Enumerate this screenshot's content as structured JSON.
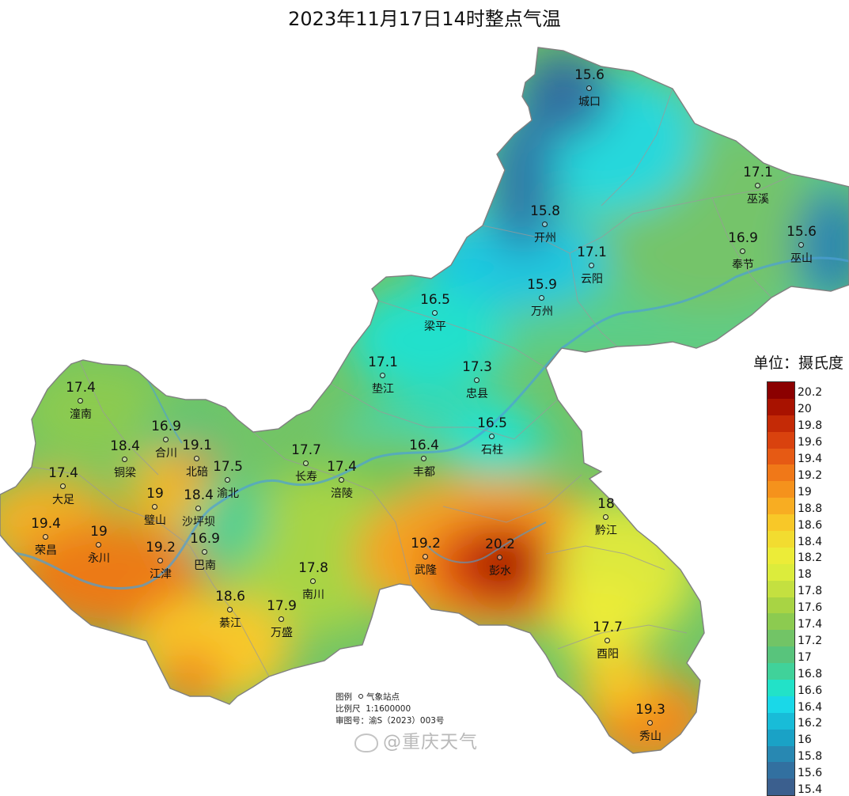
{
  "title": "2023年11月17日14时整点气温",
  "colors": {
    "deep_blue": "#3a6f9c",
    "cyan": "#27d6e6",
    "green": "#8ccf5e",
    "yellow": "#e8e83a",
    "orange": "#f08a1a",
    "red": "#c42a0e",
    "river": "#4d9fd6",
    "border": "#9a9a9a"
  },
  "stations": [
    {
      "name": "城口",
      "value": "15.6"
    },
    {
      "name": "巫溪",
      "value": "17.1"
    },
    {
      "name": "开州",
      "value": "15.8"
    },
    {
      "name": "奉节",
      "value": "16.9"
    },
    {
      "name": "巫山",
      "value": "15.6"
    },
    {
      "name": "云阳",
      "value": "17.1"
    },
    {
      "name": "万州",
      "value": "15.9"
    },
    {
      "name": "梁平",
      "value": "16.5"
    },
    {
      "name": "垫江",
      "value": "17.1"
    },
    {
      "name": "忠县",
      "value": "17.3"
    },
    {
      "name": "潼南",
      "value": "17.4"
    },
    {
      "name": "合川",
      "value": "16.9"
    },
    {
      "name": "北碚",
      "value": "19.1"
    },
    {
      "name": "铜梁",
      "value": "18.4"
    },
    {
      "name": "渝北",
      "value": "17.5"
    },
    {
      "name": "长寿",
      "value": "17.7"
    },
    {
      "name": "石柱",
      "value": "16.5"
    },
    {
      "name": "丰都",
      "value": "16.4"
    },
    {
      "name": "涪陵",
      "value": "17.4"
    },
    {
      "name": "大足",
      "value": "17.4"
    },
    {
      "name": "璧山",
      "value": "19"
    },
    {
      "name": "沙坪坝",
      "value": "18.4"
    },
    {
      "name": "荣昌",
      "value": "19.4"
    },
    {
      "name": "永川",
      "value": "19"
    },
    {
      "name": "江津",
      "value": "19.2"
    },
    {
      "name": "巴南",
      "value": "16.9"
    },
    {
      "name": "武隆",
      "value": "19.2"
    },
    {
      "name": "彭水",
      "value": "20.2"
    },
    {
      "name": "黔江",
      "value": "18"
    },
    {
      "name": "南川",
      "value": "17.8"
    },
    {
      "name": "綦江",
      "value": "18.6"
    },
    {
      "name": "万盛",
      "value": "17.9"
    },
    {
      "name": "酉阳",
      "value": "17.7"
    },
    {
      "name": "秀山",
      "value": "19.3"
    }
  ],
  "legend": {
    "unit_label": "单位：摄氏度",
    "entries": [
      {
        "value": "20.2",
        "color": "#8b0000"
      },
      {
        "value": "20",
        "color": "#a81200"
      },
      {
        "value": "19.8",
        "color": "#c42a06"
      },
      {
        "value": "19.6",
        "color": "#d9420e"
      },
      {
        "value": "19.4",
        "color": "#e65a14"
      },
      {
        "value": "19.2",
        "color": "#f07818"
      },
      {
        "value": "19",
        "color": "#f5921c"
      },
      {
        "value": "18.8",
        "color": "#f8ad22"
      },
      {
        "value": "18.6",
        "color": "#f8c828"
      },
      {
        "value": "18.4",
        "color": "#f2dc30"
      },
      {
        "value": "18.2",
        "color": "#ecec38"
      },
      {
        "value": "18",
        "color": "#dcec3c"
      },
      {
        "value": "17.8",
        "color": "#c4e040"
      },
      {
        "value": "17.6",
        "color": "#a8d444"
      },
      {
        "value": "17.4",
        "color": "#8ccb50"
      },
      {
        "value": "17.2",
        "color": "#72c466"
      },
      {
        "value": "17",
        "color": "#58c47c"
      },
      {
        "value": "16.8",
        "color": "#40d29a"
      },
      {
        "value": "16.6",
        "color": "#22e2c8"
      },
      {
        "value": "16.4",
        "color": "#1ad8e8"
      },
      {
        "value": "16.2",
        "color": "#18bcd8"
      },
      {
        "value": "16",
        "color": "#1aa2c6"
      },
      {
        "value": "15.8",
        "color": "#2888b2"
      },
      {
        "value": "15.6",
        "color": "#3270a0"
      },
      {
        "value": "15.4",
        "color": "#3b5f8e"
      }
    ]
  },
  "map_info": {
    "legend_label": "图例",
    "legend_item": "气象站点",
    "scale_label": "比例尺",
    "scale_value": "1:1600000",
    "review_label": "审图号：",
    "review_value": "渝S（2023）003号"
  },
  "watermark": "@重庆天气"
}
